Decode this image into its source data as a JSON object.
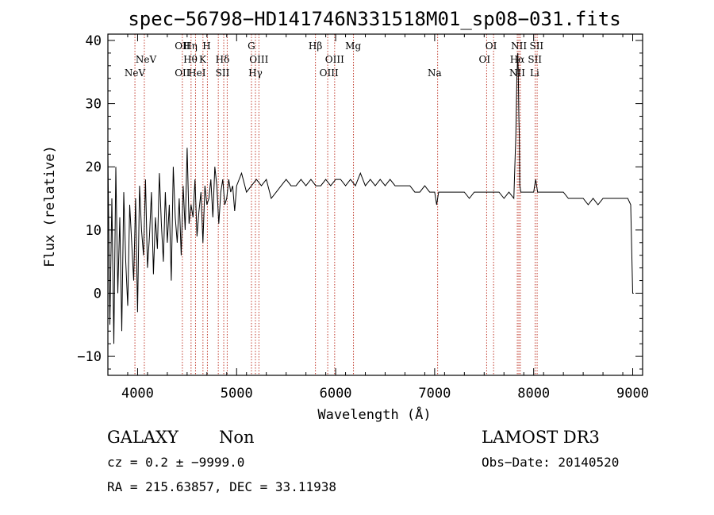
{
  "chart_data": {
    "type": "line",
    "title": "spec−56798−HD141746N331518M01_sp08−031.fits",
    "xlabel": "Wavelength (Å)",
    "ylabel": "Flux (relative)",
    "xlim": [
      3700,
      9100
    ],
    "ylim": [
      -13,
      41
    ],
    "x_ticks": [
      4000,
      5000,
      6000,
      7000,
      8000,
      9000
    ],
    "y_ticks": [
      -10,
      0,
      10,
      20,
      30,
      40
    ],
    "y_tick_labels": [
      "−10",
      "0",
      "10",
      "20",
      "30",
      "40"
    ],
    "series": [
      {
        "name": "spectrum",
        "x": [
          3700,
          3720,
          3740,
          3760,
          3780,
          3800,
          3820,
          3840,
          3860,
          3880,
          3900,
          3920,
          3940,
          3960,
          3980,
          4000,
          4020,
          4040,
          4060,
          4080,
          4100,
          4120,
          4140,
          4160,
          4180,
          4200,
          4220,
          4240,
          4260,
          4280,
          4300,
          4320,
          4340,
          4360,
          4380,
          4400,
          4420,
          4440,
          4460,
          4480,
          4500,
          4520,
          4540,
          4560,
          4580,
          4600,
          4620,
          4640,
          4660,
          4680,
          4700,
          4720,
          4740,
          4760,
          4780,
          4800,
          4820,
          4840,
          4860,
          4880,
          4900,
          4920,
          4940,
          4960,
          4980,
          5000,
          5050,
          5100,
          5150,
          5200,
          5250,
          5300,
          5350,
          5400,
          5450,
          5500,
          5550,
          5600,
          5650,
          5700,
          5750,
          5800,
          5850,
          5900,
          5950,
          6000,
          6050,
          6100,
          6150,
          6200,
          6250,
          6300,
          6350,
          6400,
          6450,
          6500,
          6550,
          6600,
          6650,
          6700,
          6750,
          6800,
          6850,
          6900,
          6950,
          7000,
          7020,
          7040,
          7060,
          7100,
          7150,
          7200,
          7250,
          7300,
          7350,
          7400,
          7450,
          7500,
          7550,
          7600,
          7650,
          7700,
          7750,
          7800,
          7820,
          7830,
          7840,
          7845,
          7850,
          7855,
          7860,
          7870,
          7880,
          7900,
          7950,
          8000,
          8020,
          8030,
          8040,
          8060,
          8100,
          8150,
          8200,
          8250,
          8300,
          8350,
          8400,
          8450,
          8500,
          8550,
          8600,
          8650,
          8700,
          8750,
          8800,
          8850,
          8900,
          8950,
          8980,
          9000,
          9010
        ],
        "y": [
          22,
          -5,
          15,
          -8,
          20,
          0,
          12,
          -6,
          16,
          5,
          -2,
          14,
          8,
          2,
          15,
          -3,
          17,
          10,
          6,
          18,
          4,
          9,
          16,
          3,
          12,
          7,
          19,
          11,
          5,
          16,
          8,
          14,
          2,
          20,
          12,
          8,
          15,
          6,
          17,
          10,
          23,
          11,
          14,
          12,
          18,
          9,
          13,
          16,
          8,
          17,
          14,
          15,
          18,
          12,
          20,
          17,
          11,
          16,
          18,
          14,
          15,
          18,
          16,
          17,
          13,
          17,
          19,
          16,
          17,
          18,
          17,
          18,
          15,
          16,
          17,
          18,
          17,
          17,
          18,
          17,
          18,
          17,
          17,
          18,
          17,
          18,
          18,
          17,
          18,
          17,
          19,
          17,
          18,
          17,
          18,
          17,
          18,
          17,
          17,
          17,
          17,
          16,
          16,
          17,
          16,
          16,
          14,
          16,
          16,
          16,
          16,
          16,
          16,
          16,
          15,
          16,
          16,
          16,
          16,
          16,
          16,
          15,
          16,
          15,
          25,
          34,
          38,
          34,
          28,
          25,
          17,
          16,
          16,
          16,
          16,
          16,
          18,
          17,
          16,
          16,
          16,
          16,
          16,
          16,
          16,
          15,
          15,
          15,
          15,
          14,
          15,
          14,
          15,
          15,
          15,
          15,
          15,
          15,
          14,
          0,
          0
        ]
      }
    ],
    "emission_lines": [
      {
        "label": "NeV",
        "x": 3973,
        "row": 3
      },
      {
        "label": "NeV",
        "x": 4085,
        "row": 2
      },
      {
        "label": "OII",
        "x": 4452,
        "row": 1
      },
      {
        "label": "OII",
        "x": 4452,
        "row": 3
      },
      {
        "label": "Hη",
        "x": 4533,
        "row": 1
      },
      {
        "label": "Hθ",
        "x": 4533,
        "row": 2
      },
      {
        "label": "H",
        "x": 4697,
        "row": 1
      },
      {
        "label": "K",
        "x": 4657,
        "row": 2
      },
      {
        "label": "HeI",
        "x": 4600,
        "row": 3
      },
      {
        "label": "Hδ",
        "x": 4858,
        "row": 2
      },
      {
        "label": "SII",
        "x": 4858,
        "row": 3
      },
      {
        "label": "G",
        "x": 5150,
        "row": 1
      },
      {
        "label": "OIII",
        "x": 5225,
        "row": 2
      },
      {
        "label": "Hγ",
        "x": 5190,
        "row": 3
      },
      {
        "label": "Hβ",
        "x": 5796,
        "row": 1
      },
      {
        "label": "Mg",
        "x": 6177,
        "row": 1
      },
      {
        "label": "OIII",
        "x": 5990,
        "row": 2
      },
      {
        "label": "OIII",
        "x": 5933,
        "row": 3
      },
      {
        "label": "Na",
        "x": 7000,
        "row": 3
      },
      {
        "label": "OI",
        "x": 7570,
        "row": 1
      },
      {
        "label": "OI",
        "x": 7504,
        "row": 2
      },
      {
        "label": "NII",
        "x": 7851,
        "row": 1
      },
      {
        "label": "SII",
        "x": 8029,
        "row": 1
      },
      {
        "label": "Hα",
        "x": 7834,
        "row": 2
      },
      {
        "label": "SII",
        "x": 8012,
        "row": 2
      },
      {
        "label": "NII",
        "x": 7834,
        "row": 3
      },
      {
        "label": "Li",
        "x": 8010,
        "row": 3
      }
    ],
    "marker_lines": [
      3973,
      4068,
      4452,
      4540,
      4585,
      4660,
      4705,
      4815,
      4870,
      4905,
      5150,
      5190,
      5225,
      5796,
      5920,
      5990,
      6180,
      7030,
      7525,
      7595,
      7835,
      7850,
      7865,
      8015,
      8035
    ],
    "grid": false
  },
  "footer": {
    "object_class": "GALAXY",
    "subclass": "Non",
    "survey": "LAMOST DR3",
    "redshift": "cz = 0.2 ± −9999.0",
    "obs_date": "Obs−Date: 20140520",
    "coordinates": "RA = 215.63857, DEC =  33.11938"
  },
  "colors": {
    "line": "#000000",
    "marker": "#c0392b",
    "background": "#ffffff"
  }
}
